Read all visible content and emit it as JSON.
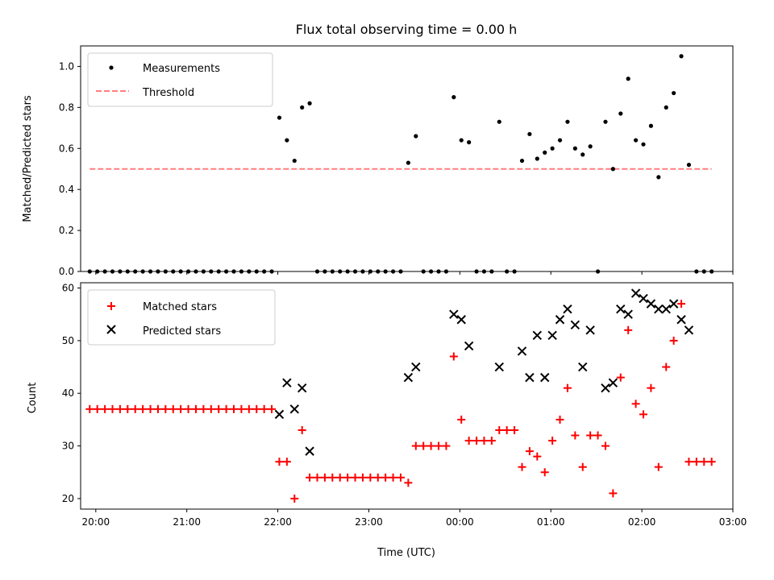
{
  "chart_data": [
    {
      "type": "scatter",
      "title": "Flux total observing time = 0.00 h",
      "xlabel": "",
      "ylabel": "Matched/Predicted stars",
      "ylim": [
        0,
        1.1
      ],
      "yticks": [
        0.0,
        0.2,
        0.4,
        0.6,
        0.8,
        1.0
      ],
      "xlim": [
        "19:50",
        "03:00"
      ],
      "legend_placement": "top-left",
      "series": [
        {
          "name": "Measurements",
          "color": "#000000",
          "marker": "dot",
          "points": [
            [
              "19:56",
              0
            ],
            [
              "20:01",
              0
            ],
            [
              "20:06",
              0
            ],
            [
              "20:11",
              0
            ],
            [
              "20:16",
              0
            ],
            [
              "20:21",
              0
            ],
            [
              "20:26",
              0
            ],
            [
              "20:31",
              0
            ],
            [
              "20:36",
              0
            ],
            [
              "20:41",
              0
            ],
            [
              "20:46",
              0
            ],
            [
              "20:51",
              0
            ],
            [
              "20:56",
              0
            ],
            [
              "21:01",
              0
            ],
            [
              "21:06",
              0
            ],
            [
              "21:11",
              0
            ],
            [
              "21:16",
              0
            ],
            [
              "21:21",
              0
            ],
            [
              "21:26",
              0
            ],
            [
              "21:31",
              0
            ],
            [
              "21:36",
              0
            ],
            [
              "21:41",
              0
            ],
            [
              "21:46",
              0
            ],
            [
              "21:51",
              0
            ],
            [
              "21:56",
              0
            ],
            [
              "22:01",
              0.75
            ],
            [
              "22:06",
              0.64
            ],
            [
              "22:11",
              0.54
            ],
            [
              "22:16",
              0.8
            ],
            [
              "22:21",
              0.82
            ],
            [
              "22:26",
              0
            ],
            [
              "22:31",
              0
            ],
            [
              "22:36",
              0
            ],
            [
              "22:41",
              0
            ],
            [
              "22:46",
              0
            ],
            [
              "22:51",
              0
            ],
            [
              "22:56",
              0
            ],
            [
              "23:01",
              0
            ],
            [
              "23:06",
              0
            ],
            [
              "23:11",
              0
            ],
            [
              "23:16",
              0
            ],
            [
              "23:21",
              0
            ],
            [
              "23:26",
              0.53
            ],
            [
              "23:31",
              0.66
            ],
            [
              "23:36",
              0
            ],
            [
              "23:41",
              0
            ],
            [
              "23:46",
              0
            ],
            [
              "23:51",
              0
            ],
            [
              "23:56",
              0.85
            ],
            [
              "00:01",
              0.64
            ],
            [
              "00:06",
              0.63
            ],
            [
              "00:11",
              0
            ],
            [
              "00:16",
              0
            ],
            [
              "00:21",
              0
            ],
            [
              "00:26",
              0.73
            ],
            [
              "00:31",
              0
            ],
            [
              "00:36",
              0
            ],
            [
              "00:41",
              0.54
            ],
            [
              "00:46",
              0.67
            ],
            [
              "00:51",
              0.55
            ],
            [
              "00:56",
              0.58
            ],
            [
              "01:01",
              0.6
            ],
            [
              "01:06",
              0.64
            ],
            [
              "01:11",
              0.73
            ],
            [
              "01:16",
              0.6
            ],
            [
              "01:21",
              0.57
            ],
            [
              "01:26",
              0.61
            ],
            [
              "01:31",
              0
            ],
            [
              "01:36",
              0.73
            ],
            [
              "01:41",
              0.5
            ],
            [
              "01:46",
              0.77
            ],
            [
              "01:51",
              0.94
            ],
            [
              "01:56",
              0.64
            ],
            [
              "02:01",
              0.62
            ],
            [
              "02:06",
              0.71
            ],
            [
              "02:11",
              0.46
            ],
            [
              "02:16",
              0.8
            ],
            [
              "02:21",
              0.87
            ],
            [
              "02:26",
              1.05
            ],
            [
              "02:31",
              0.52
            ],
            [
              "02:36",
              0
            ],
            [
              "02:41",
              0
            ],
            [
              "02:46",
              0
            ]
          ]
        },
        {
          "name": "Threshold",
          "color": "#ff7f7f",
          "style": "dashed",
          "points": [
            [
              "19:56",
              0.5
            ],
            [
              "02:46",
              0.5
            ]
          ]
        }
      ]
    },
    {
      "type": "scatter",
      "title": "",
      "xlabel": "Time (UTC)",
      "ylabel": "Count",
      "ylim": [
        18,
        61
      ],
      "yticks": [
        20,
        30,
        40,
        50,
        60
      ],
      "xlim": [
        "19:50",
        "03:00"
      ],
      "xticks": [
        "20:00",
        "21:00",
        "22:00",
        "23:00",
        "00:00",
        "01:00",
        "02:00",
        "03:00"
      ],
      "legend_placement": "top-left",
      "series": [
        {
          "name": "Matched stars",
          "color": "#ff0000",
          "marker": "plus",
          "points": [
            [
              "19:56",
              37
            ],
            [
              "20:01",
              37
            ],
            [
              "20:06",
              37
            ],
            [
              "20:11",
              37
            ],
            [
              "20:16",
              37
            ],
            [
              "20:21",
              37
            ],
            [
              "20:26",
              37
            ],
            [
              "20:31",
              37
            ],
            [
              "20:36",
              37
            ],
            [
              "20:41",
              37
            ],
            [
              "20:46",
              37
            ],
            [
              "20:51",
              37
            ],
            [
              "20:56",
              37
            ],
            [
              "21:01",
              37
            ],
            [
              "21:06",
              37
            ],
            [
              "21:11",
              37
            ],
            [
              "21:16",
              37
            ],
            [
              "21:21",
              37
            ],
            [
              "21:26",
              37
            ],
            [
              "21:31",
              37
            ],
            [
              "21:36",
              37
            ],
            [
              "21:41",
              37
            ],
            [
              "21:46",
              37
            ],
            [
              "21:51",
              37
            ],
            [
              "21:56",
              37
            ],
            [
              "22:01",
              27
            ],
            [
              "22:06",
              27
            ],
            [
              "22:11",
              20
            ],
            [
              "22:16",
              33
            ],
            [
              "22:21",
              24
            ],
            [
              "22:26",
              24
            ],
            [
              "22:31",
              24
            ],
            [
              "22:36",
              24
            ],
            [
              "22:41",
              24
            ],
            [
              "22:46",
              24
            ],
            [
              "22:51",
              24
            ],
            [
              "22:56",
              24
            ],
            [
              "23:01",
              24
            ],
            [
              "23:06",
              24
            ],
            [
              "23:11",
              24
            ],
            [
              "23:16",
              24
            ],
            [
              "23:21",
              24
            ],
            [
              "23:26",
              23
            ],
            [
              "23:31",
              30
            ],
            [
              "23:36",
              30
            ],
            [
              "23:41",
              30
            ],
            [
              "23:46",
              30
            ],
            [
              "23:51",
              30
            ],
            [
              "23:56",
              47
            ],
            [
              "00:01",
              35
            ],
            [
              "00:06",
              31
            ],
            [
              "00:11",
              31
            ],
            [
              "00:16",
              31
            ],
            [
              "00:21",
              31
            ],
            [
              "00:26",
              33
            ],
            [
              "00:31",
              33
            ],
            [
              "00:36",
              33
            ],
            [
              "00:41",
              26
            ],
            [
              "00:46",
              29
            ],
            [
              "00:51",
              28
            ],
            [
              "00:56",
              25
            ],
            [
              "01:01",
              31
            ],
            [
              "01:06",
              35
            ],
            [
              "01:11",
              41
            ],
            [
              "01:16",
              32
            ],
            [
              "01:21",
              26
            ],
            [
              "01:26",
              32
            ],
            [
              "01:31",
              32
            ],
            [
              "01:36",
              30
            ],
            [
              "01:41",
              21
            ],
            [
              "01:46",
              43
            ],
            [
              "01:51",
              52
            ],
            [
              "01:56",
              38
            ],
            [
              "02:01",
              36
            ],
            [
              "02:06",
              41
            ],
            [
              "02:11",
              26
            ],
            [
              "02:16",
              45
            ],
            [
              "02:21",
              50
            ],
            [
              "02:26",
              57
            ],
            [
              "02:31",
              27
            ],
            [
              "02:36",
              27
            ],
            [
              "02:41",
              27
            ],
            [
              "02:46",
              27
            ]
          ]
        },
        {
          "name": "Predicted stars",
          "color": "#000000",
          "marker": "x",
          "points": [
            [
              "22:01",
              36
            ],
            [
              "22:06",
              42
            ],
            [
              "22:11",
              37
            ],
            [
              "22:16",
              41
            ],
            [
              "22:21",
              29
            ],
            [
              "23:26",
              43
            ],
            [
              "23:31",
              45
            ],
            [
              "23:56",
              55
            ],
            [
              "00:01",
              54
            ],
            [
              "00:06",
              49
            ],
            [
              "00:26",
              45
            ],
            [
              "00:41",
              48
            ],
            [
              "00:46",
              43
            ],
            [
              "00:51",
              51
            ],
            [
              "00:56",
              43
            ],
            [
              "01:01",
              51
            ],
            [
              "01:06",
              54
            ],
            [
              "01:11",
              56
            ],
            [
              "01:16",
              53
            ],
            [
              "01:21",
              45
            ],
            [
              "01:26",
              52
            ],
            [
              "01:36",
              41
            ],
            [
              "01:41",
              42
            ],
            [
              "01:46",
              56
            ],
            [
              "01:51",
              55
            ],
            [
              "01:56",
              59
            ],
            [
              "02:01",
              58
            ],
            [
              "02:06",
              57
            ],
            [
              "02:11",
              56
            ],
            [
              "02:16",
              56
            ],
            [
              "02:21",
              57
            ],
            [
              "02:26",
              54
            ],
            [
              "02:31",
              52
            ]
          ]
        }
      ]
    }
  ]
}
